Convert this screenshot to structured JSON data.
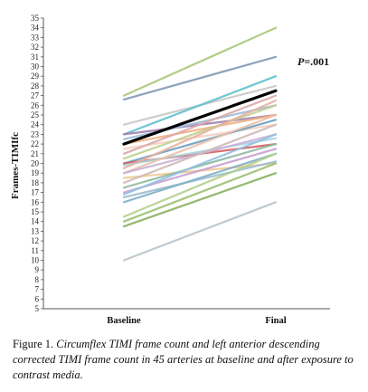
{
  "chart_data": {
    "type": "line",
    "categories": [
      "Baseline",
      "Final"
    ],
    "ylabel": "Frames-TIMIfc",
    "ylim": [
      5,
      35
    ],
    "yticks": [
      5,
      6,
      7,
      8,
      9,
      10,
      11,
      12,
      13,
      14,
      15,
      16,
      17,
      18,
      19,
      20,
      21,
      22,
      23,
      24,
      25,
      26,
      27,
      28,
      29,
      30,
      31,
      32,
      33,
      34,
      35
    ],
    "grid": false,
    "annotation": {
      "italic": "P",
      "text": "=.001"
    },
    "mean_line": {
      "values": [
        22,
        27.5
      ],
      "color": "#000000"
    },
    "series": [
      {
        "values": [
          27,
          34
        ],
        "color": "#a8c87a"
      },
      {
        "values": [
          26.6,
          31
        ],
        "color": "#7f99b5"
      },
      {
        "values": [
          24,
          28
        ],
        "color": "#c8c8c8"
      },
      {
        "values": [
          23,
          29
        ],
        "color": "#5fc0cf"
      },
      {
        "values": [
          23,
          25
        ],
        "color": "#a080b0"
      },
      {
        "values": [
          22.5,
          26
        ],
        "color": "#9dbbd8"
      },
      {
        "values": [
          22,
          25
        ],
        "color": "#f0b080"
      },
      {
        "values": [
          21.5,
          24
        ],
        "color": "#f5cfc0"
      },
      {
        "values": [
          21,
          27
        ],
        "color": "#d9a8a8"
      },
      {
        "values": [
          20.5,
          26
        ],
        "color": "#c0d090"
      },
      {
        "values": [
          20,
          24.5
        ],
        "color": "#6a9ec0"
      },
      {
        "values": [
          20,
          22
        ],
        "color": "#d46060"
      },
      {
        "values": [
          19.8,
          22.6
        ],
        "color": "#a6d4de"
      },
      {
        "values": [
          19.5,
          26.5
        ],
        "color": "#e8b0a0"
      },
      {
        "values": [
          19,
          25
        ],
        "color": "#ebc0a8"
      },
      {
        "values": [
          19,
          23
        ],
        "color": "#c9b0d6"
      },
      {
        "values": [
          18.5,
          20
        ],
        "color": "#f2c890"
      },
      {
        "values": [
          18,
          24
        ],
        "color": "#d0b8b8"
      },
      {
        "values": [
          17.5,
          22
        ],
        "color": "#8fb8a0"
      },
      {
        "values": [
          17,
          21.5
        ],
        "color": "#c8a0d0"
      },
      {
        "values": [
          16.8,
          23
        ],
        "color": "#90c0e0"
      },
      {
        "values": [
          16.5,
          20.2
        ],
        "color": "#9bbbd0"
      },
      {
        "values": [
          16,
          21
        ],
        "color": "#7fb0c8"
      },
      {
        "values": [
          14.5,
          21
        ],
        "color": "#b4d08c"
      },
      {
        "values": [
          14,
          20
        ],
        "color": "#9ac070"
      },
      {
        "values": [
          13.5,
          19
        ],
        "color": "#88b060"
      },
      {
        "values": [
          10,
          16
        ],
        "color": "#b8c4cc"
      }
    ]
  },
  "caption": {
    "lead": "Figure 1.",
    "body": "Circumflex TIMI frame count and left anterior descending corrected TIMI frame count in 45 arteries at baseline and after exposure to contrast media."
  }
}
